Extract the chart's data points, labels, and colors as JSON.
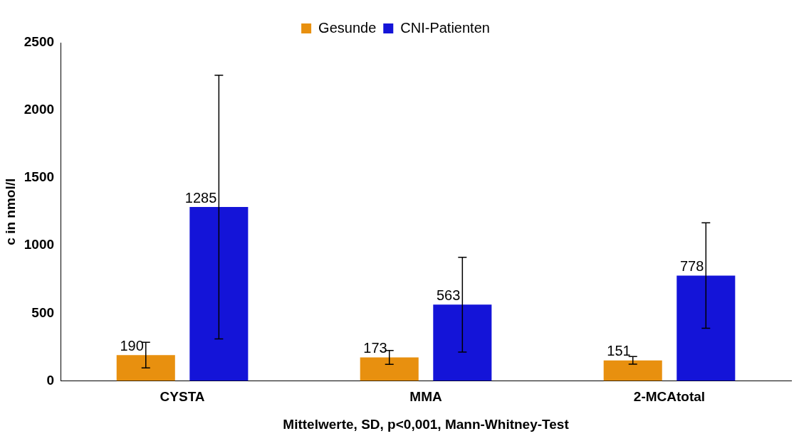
{
  "chart_data": {
    "type": "bar",
    "xlabel": "Mittelwerte, SD, p<0,001, Mann-Whitney-Test",
    "ylabel": "c in nmol/l",
    "categories": [
      "CYSTA",
      "MMA",
      "2-MCAtotal"
    ],
    "series": [
      {
        "name": "Gesunde",
        "color": "#e8900f",
        "values": [
          190,
          173,
          151
        ],
        "errors": [
          95,
          51,
          28
        ]
      },
      {
        "name": "CNI-Patienten",
        "color": "#1414d8",
        "values": [
          1285,
          563,
          778
        ],
        "errors": [
          975,
          350,
          390
        ]
      }
    ],
    "ylim": [
      0,
      2500
    ],
    "yticks": [
      0,
      500,
      1000,
      1500,
      2000,
      2500
    ],
    "grid": false,
    "legend": "top",
    "data_labels": true
  }
}
